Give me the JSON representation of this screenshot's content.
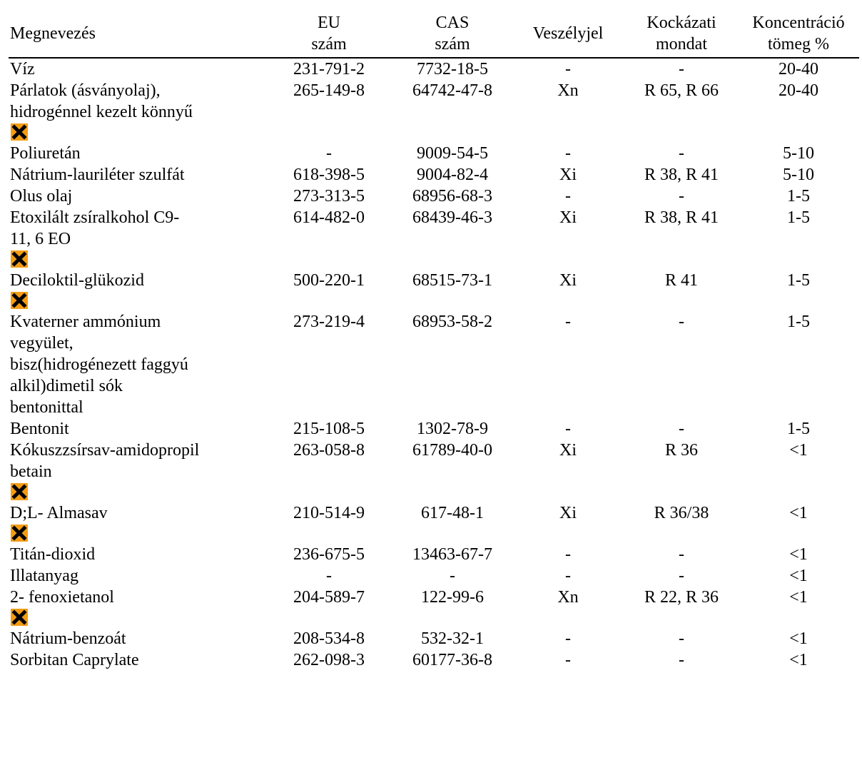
{
  "headers": {
    "name": [
      "Megnevezés"
    ],
    "eu": [
      "EU",
      "szám"
    ],
    "cas": [
      "CAS",
      "szám"
    ],
    "hazard": [
      "Veszélyjel"
    ],
    "risk": [
      "Kockázati",
      "mondat"
    ],
    "conc": [
      "Koncentráció",
      "tömeg %"
    ]
  },
  "hazard_icon": {
    "name": "harmful-irritant-x-icon",
    "color": "#f39c12",
    "cross_color": "#000000"
  },
  "rows": [
    {
      "name": [
        "Víz"
      ],
      "eu": "231-791-2",
      "cas": "7732-18-5",
      "hazard": "-",
      "risk": "-",
      "conc": "20-40",
      "icon": false
    },
    {
      "name": [
        "Párlatok (ásványolaj),",
        "hidrogénnel kezelt könnyű"
      ],
      "eu": "265-149-8",
      "cas": "64742-47-8",
      "hazard": "Xn",
      "risk": "R 65, R 66",
      "conc": "20-40",
      "icon": true
    },
    {
      "name": [
        "Poliuretán"
      ],
      "eu": "-",
      "cas": "9009-54-5",
      "hazard": "-",
      "risk": "-",
      "conc": "5-10",
      "icon": false
    },
    {
      "name": [
        "Nátrium-lauriléter szulfát"
      ],
      "eu": "618-398-5",
      "cas": "9004-82-4",
      "hazard": "Xi",
      "risk": "R 38, R 41",
      "conc": "5-10",
      "icon": false
    },
    {
      "name": [
        "Olus olaj"
      ],
      "eu": "273-313-5",
      "cas": "68956-68-3",
      "hazard": "-",
      "risk": "-",
      "conc": "1-5",
      "icon": false
    },
    {
      "name": [
        "Etoxilált zsíralkohol C9-",
        "11, 6 EO"
      ],
      "eu": "614-482-0",
      "cas": "68439-46-3",
      "hazard": "Xi",
      "risk": "R 38, R 41",
      "conc": "1-5",
      "icon": true
    },
    {
      "name": [
        "Deciloktil-glükozid"
      ],
      "eu": "500-220-1",
      "cas": "68515-73-1",
      "hazard": "Xi",
      "risk": "R 41",
      "conc": "1-5",
      "icon": true
    },
    {
      "name": [
        "Kvaterner ammónium",
        "vegyület,",
        "bisz(hidrogénezett faggyú",
        "alkil)dimetil sók",
        "bentonittal"
      ],
      "eu": "273-219-4",
      "cas": "68953-58-2",
      "hazard": "-",
      "risk": "-",
      "conc": "1-5",
      "icon": false
    },
    {
      "name": [
        "Bentonit"
      ],
      "eu": "215-108-5",
      "cas": "1302-78-9",
      "hazard": "-",
      "risk": "-",
      "conc": "1-5",
      "icon": false
    },
    {
      "name": [
        "Kókuszzsírsav-amidopropil",
        "betain"
      ],
      "eu": "263-058-8",
      "cas": "61789-40-0",
      "hazard": "Xi",
      "risk": "R 36",
      "conc": "<1",
      "icon": true
    },
    {
      "name": [
        "D;L- Almasav"
      ],
      "eu": "210-514-9",
      "cas": "617-48-1",
      "hazard": "Xi",
      "risk": "R 36/38",
      "conc": "<1",
      "icon": true
    },
    {
      "name": [
        "Titán-dioxid"
      ],
      "eu": "236-675-5",
      "cas": "13463-67-7",
      "hazard": "-",
      "risk": "-",
      "conc": "<1",
      "icon": false
    },
    {
      "name": [
        "Illatanyag"
      ],
      "eu": "-",
      "cas": "-",
      "hazard": "-",
      "risk": "-",
      "conc": "<1",
      "icon": false
    },
    {
      "name": [
        "2- fenoxietanol"
      ],
      "eu": "204-589-7",
      "cas": "122-99-6",
      "hazard": "Xn",
      "risk": "R 22, R 36",
      "conc": "<1",
      "icon": true
    },
    {
      "name": [
        "Nátrium-benzoát"
      ],
      "eu": "208-534-8",
      "cas": "532-32-1",
      "hazard": "-",
      "risk": "-",
      "conc": "<1",
      "icon": false
    },
    {
      "name": [
        "Sorbitan Caprylate"
      ],
      "eu": "262-098-3",
      "cas": "60177-36-8",
      "hazard": "-",
      "risk": "-",
      "conc": "<1",
      "icon": false
    }
  ]
}
